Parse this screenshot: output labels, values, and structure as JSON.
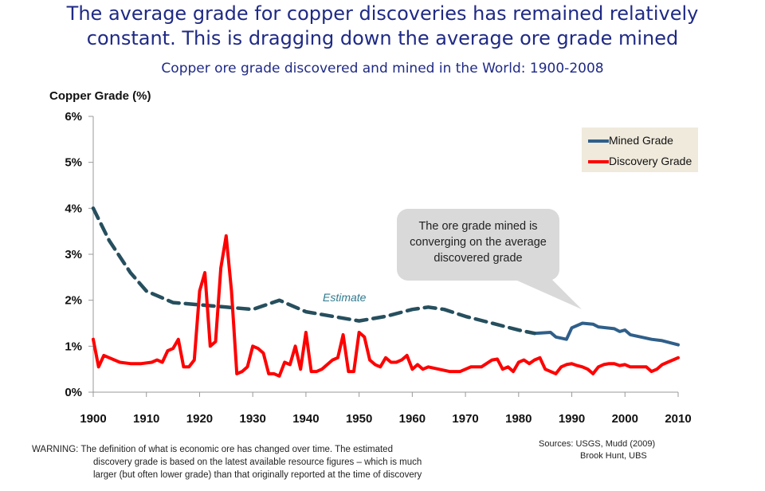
{
  "title_line1": "The average grade for copper discoveries has remained relatively",
  "title_line2": "constant.  This is dragging down the average ore grade mined",
  "subtitle": "Copper ore grade discovered and mined in the World: 1900-2008",
  "estimate_label": "Estimate",
  "callout": {
    "line1": "The ore grade mined is",
    "line2": "converging on the average",
    "line3": "discovered grade"
  },
  "warning": {
    "line1": "WARNING: The definition of what is economic ore has changed over time. The estimated",
    "line2": "discovery grade is based on the latest available resource figures – which is much",
    "line3": "larger (but  often lower grade) than that originally reported at the time of discovery"
  },
  "sources": {
    "line1": "Sources:  USGS, Mudd (2009)",
    "line2": "Brook Hunt, UBS"
  },
  "colors": {
    "title": "#1f2a86",
    "mined": "#2f5f8a",
    "mined_estimate": "#264f5e",
    "discovery": "#ff0000",
    "legend_bg": "#efeadc",
    "callout_bg": "#d9d9d9"
  },
  "chart_data": {
    "type": "line",
    "ylabel": "Copper Grade (%)",
    "xlim": [
      1900,
      2010
    ],
    "ylim": [
      0,
      6
    ],
    "x_ticks": [
      "1900",
      "1910",
      "1920",
      "1930",
      "1940",
      "1950",
      "1960",
      "1970",
      "1980",
      "1990",
      "2000",
      "2010"
    ],
    "y_ticks": [
      "0%",
      "1%",
      "2%",
      "3%",
      "4%",
      "5%",
      "6%"
    ],
    "legend_position": "top-right",
    "grid": false,
    "series": [
      {
        "name": "Mined Grade",
        "style": "solid",
        "x": [
          1983,
          1986,
          1987,
          1989,
          1990,
          1992,
          1994,
          1995,
          1998,
          1999,
          2000,
          2001,
          2003,
          2005,
          2007,
          2010
        ],
        "y": [
          1.28,
          1.3,
          1.2,
          1.15,
          1.4,
          1.5,
          1.48,
          1.42,
          1.38,
          1.32,
          1.35,
          1.25,
          1.2,
          1.15,
          1.12,
          1.03
        ]
      },
      {
        "name": "Mined Grade (estimate)",
        "style": "dashed",
        "x": [
          1900,
          1903,
          1907,
          1910,
          1915,
          1920,
          1925,
          1930,
          1935,
          1940,
          1945,
          1950,
          1955,
          1960,
          1963,
          1966,
          1970,
          1975,
          1980,
          1983
        ],
        "y": [
          4.0,
          3.3,
          2.6,
          2.2,
          1.95,
          1.9,
          1.85,
          1.8,
          2.0,
          1.75,
          1.65,
          1.55,
          1.65,
          1.8,
          1.85,
          1.8,
          1.65,
          1.5,
          1.35,
          1.28
        ]
      },
      {
        "name": "Discovery Grade",
        "style": "solid",
        "x": [
          1900,
          1901,
          1902,
          1903,
          1905,
          1907,
          1909,
          1911,
          1912,
          1913,
          1914,
          1915,
          1916,
          1917,
          1918,
          1919,
          1920,
          1921,
          1922,
          1923,
          1924,
          1925,
          1926,
          1927,
          1928,
          1929,
          1930,
          1931,
          1932,
          1933,
          1934,
          1935,
          1936,
          1937,
          1938,
          1939,
          1940,
          1941,
          1942,
          1943,
          1944,
          1945,
          1946,
          1947,
          1948,
          1949,
          1950,
          1951,
          1952,
          1953,
          1954,
          1955,
          1956,
          1957,
          1958,
          1959,
          1960,
          1961,
          1962,
          1963,
          1965,
          1967,
          1969,
          1971,
          1973,
          1975,
          1976,
          1977,
          1978,
          1979,
          1980,
          1981,
          1982,
          1983,
          1984,
          1985,
          1986,
          1987,
          1988,
          1989,
          1990,
          1991,
          1992,
          1993,
          1994,
          1995,
          1996,
          1997,
          1998,
          1999,
          2000,
          2001,
          2002,
          2003,
          2004,
          2005,
          2006,
          2007,
          2008,
          2010
        ],
        "y": [
          1.15,
          0.55,
          0.8,
          0.75,
          0.65,
          0.62,
          0.62,
          0.65,
          0.7,
          0.65,
          0.9,
          0.95,
          1.15,
          0.55,
          0.55,
          0.7,
          2.2,
          2.6,
          1.0,
          1.1,
          2.7,
          3.4,
          2.2,
          0.4,
          0.45,
          0.55,
          1.0,
          0.95,
          0.85,
          0.4,
          0.4,
          0.35,
          0.65,
          0.6,
          1.0,
          0.5,
          1.3,
          0.45,
          0.45,
          0.5,
          0.6,
          0.7,
          0.75,
          1.25,
          0.45,
          0.45,
          1.3,
          1.2,
          0.7,
          0.6,
          0.55,
          0.75,
          0.65,
          0.65,
          0.7,
          0.8,
          0.5,
          0.6,
          0.5,
          0.55,
          0.5,
          0.45,
          0.45,
          0.55,
          0.55,
          0.7,
          0.72,
          0.5,
          0.55,
          0.45,
          0.65,
          0.7,
          0.62,
          0.7,
          0.75,
          0.5,
          0.45,
          0.4,
          0.55,
          0.6,
          0.62,
          0.58,
          0.55,
          0.5,
          0.4,
          0.55,
          0.6,
          0.62,
          0.62,
          0.58,
          0.6,
          0.55,
          0.55,
          0.55,
          0.55,
          0.45,
          0.5,
          0.6,
          0.65,
          0.75
        ]
      }
    ]
  }
}
